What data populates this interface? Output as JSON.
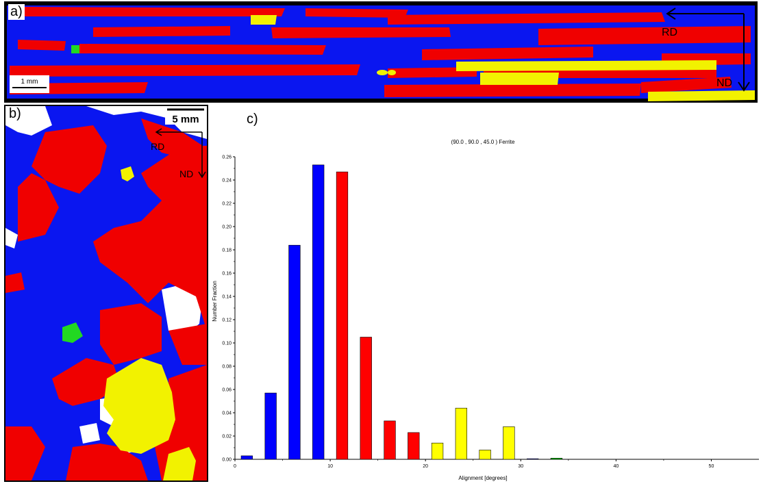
{
  "panel_a": {
    "label": "a)",
    "scale_bar": "1 mm",
    "axis_rd": "RD",
    "axis_nd": "ND",
    "colors": {
      "blue": "#0a16f0",
      "red": "#f00000",
      "yellow": "#f2f200",
      "green": "#22d822",
      "boundary": "#000000"
    }
  },
  "panel_b": {
    "label": "b)",
    "scale_bar": "5 mm",
    "axis_rd": "RD",
    "axis_nd": "ND",
    "colors": {
      "blue": "#0a16f0",
      "red": "#f00000",
      "yellow": "#f2f200",
      "green": "#22d822",
      "white": "#ffffff"
    }
  },
  "panel_c": {
    "label": "c)"
  },
  "chart_data": {
    "type": "bar",
    "title": "(90.0 , 90.0 , 45.0 ) Ferrite",
    "xlabel": "Alignment [degrees]",
    "ylabel": "Number Fraction",
    "xlim": [
      0,
      55
    ],
    "ylim": [
      0,
      0.26
    ],
    "xticks": [
      "0",
      "10",
      "20",
      "30",
      "40",
      "50"
    ],
    "yticks": [
      "0.00",
      "0.02",
      "0.04",
      "0.06",
      "0.08",
      "0.10",
      "0.12",
      "0.14",
      "0.16",
      "0.18",
      "0.20",
      "0.22",
      "0.24",
      "0.26"
    ],
    "grid": false,
    "bar_width_deg": 1.2,
    "bars": [
      {
        "x": 1.25,
        "value": 0.003,
        "color": "#0000ff"
      },
      {
        "x": 3.75,
        "value": 0.057,
        "color": "#0000ff"
      },
      {
        "x": 6.25,
        "value": 0.184,
        "color": "#0000ff"
      },
      {
        "x": 8.75,
        "value": 0.253,
        "color": "#0000ff"
      },
      {
        "x": 11.25,
        "value": 0.247,
        "color": "#ff0000"
      },
      {
        "x": 13.75,
        "value": 0.105,
        "color": "#ff0000"
      },
      {
        "x": 16.25,
        "value": 0.033,
        "color": "#ff0000"
      },
      {
        "x": 18.75,
        "value": 0.023,
        "color": "#ff0000"
      },
      {
        "x": 21.25,
        "value": 0.014,
        "color": "#ffff00"
      },
      {
        "x": 23.75,
        "value": 0.044,
        "color": "#ffff00"
      },
      {
        "x": 26.25,
        "value": 0.008,
        "color": "#ffff00"
      },
      {
        "x": 28.75,
        "value": 0.028,
        "color": "#ffff00"
      },
      {
        "x": 31.25,
        "value": 0.0005,
        "color": "#0000ff"
      },
      {
        "x": 33.75,
        "value": 0.001,
        "color": "#00cc00"
      }
    ]
  }
}
